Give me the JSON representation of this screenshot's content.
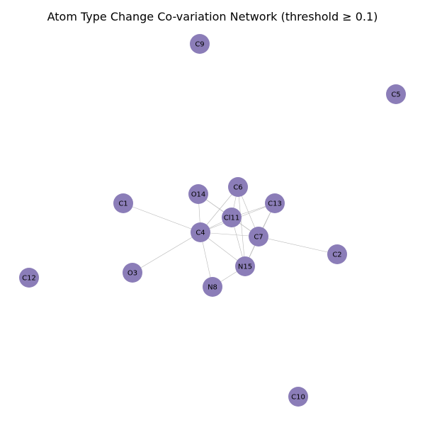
{
  "title": "Atom Type Change Co-variation Network (threshold ≥ 0.1)",
  "colors": {
    "node_fill": "#8b7db8",
    "edge": "#b8b8b8",
    "background": "#ffffff"
  },
  "nodes": [
    {
      "id": "C9",
      "label": "C9"
    },
    {
      "id": "C5",
      "label": "C5"
    },
    {
      "id": "C6",
      "label": "C6"
    },
    {
      "id": "O14",
      "label": "O14"
    },
    {
      "id": "C13",
      "label": "C13"
    },
    {
      "id": "C1",
      "label": "C1"
    },
    {
      "id": "Cl11",
      "label": "Cl11"
    },
    {
      "id": "C4",
      "label": "C4"
    },
    {
      "id": "C7",
      "label": "C7"
    },
    {
      "id": "C2",
      "label": "C2"
    },
    {
      "id": "N15",
      "label": "N15"
    },
    {
      "id": "O3",
      "label": "O3"
    },
    {
      "id": "N8",
      "label": "N8"
    },
    {
      "id": "C12",
      "label": "C12"
    },
    {
      "id": "C10",
      "label": "C10"
    }
  ],
  "edges": [
    [
      "C1",
      "C4"
    ],
    [
      "O3",
      "C4"
    ],
    [
      "C4",
      "O14"
    ],
    [
      "C4",
      "C6"
    ],
    [
      "C4",
      "Cl11"
    ],
    [
      "C4",
      "C13"
    ],
    [
      "C4",
      "C7"
    ],
    [
      "C4",
      "N15"
    ],
    [
      "C4",
      "N8"
    ],
    [
      "O14",
      "Cl11"
    ],
    [
      "O14",
      "C7"
    ],
    [
      "C6",
      "Cl11"
    ],
    [
      "C6",
      "C7"
    ],
    [
      "C6",
      "N15"
    ],
    [
      "C13",
      "Cl11"
    ],
    [
      "C13",
      "C7"
    ],
    [
      "Cl11",
      "C7"
    ],
    [
      "Cl11",
      "N15"
    ],
    [
      "C7",
      "C2"
    ],
    [
      "C7",
      "N15"
    ],
    [
      "N15",
      "N8"
    ],
    [
      "C13",
      "N15"
    ]
  ]
}
